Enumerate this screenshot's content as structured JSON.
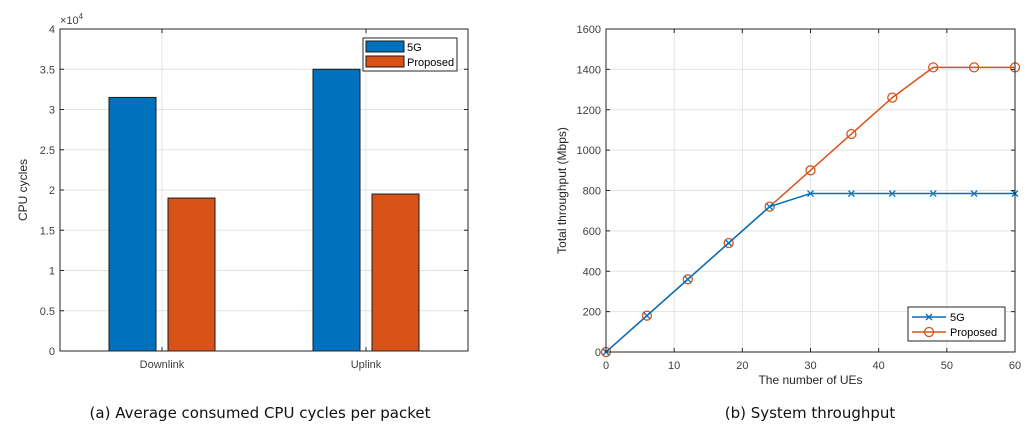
{
  "chart_data": [
    {
      "type": "bar",
      "title": "",
      "caption": "(a) Average consumed CPU cycles per packet",
      "xlabel": "",
      "ylabel": "CPU cycles",
      "exponent_label": "×10",
      "exponent_power": "4",
      "categories": [
        "Downlink",
        "Uplink"
      ],
      "series": [
        {
          "name": "5G",
          "color": "#0072BD",
          "values": [
            3.15,
            3.5
          ]
        },
        {
          "name": "Proposed",
          "color": "#D95319",
          "values": [
            1.9,
            1.95
          ]
        }
      ],
      "ylim": [
        0,
        4
      ],
      "yticks": [
        0,
        0.5,
        1,
        1.5,
        2,
        2.5,
        3,
        3.5,
        4
      ],
      "ytick_labels": [
        "0",
        "0.5",
        "1",
        "1.5",
        "2",
        "2.5",
        "3",
        "3.5",
        "4"
      ],
      "grid": true,
      "legend_position": "top-right"
    },
    {
      "type": "line",
      "title": "",
      "caption": "(b) System throughput",
      "xlabel": "The number of UEs",
      "ylabel": "Total throughput (Mbps)",
      "x": [
        0,
        6,
        12,
        18,
        24,
        30,
        36,
        42,
        48,
        54,
        60
      ],
      "series": [
        {
          "name": "5G",
          "color": "#0072BD",
          "marker": "x",
          "values": [
            0,
            180,
            360,
            540,
            720,
            785,
            785,
            785,
            785,
            785,
            785
          ]
        },
        {
          "name": "Proposed",
          "color": "#D95319",
          "marker": "o",
          "values": [
            0,
            180,
            360,
            540,
            720,
            900,
            1080,
            1260,
            1410,
            1410,
            1410
          ]
        }
      ],
      "xlim": [
        0,
        60
      ],
      "ylim": [
        0,
        1600
      ],
      "xticks": [
        0,
        10,
        20,
        30,
        40,
        50,
        60
      ],
      "xtick_labels": [
        "0",
        "10",
        "20",
        "30",
        "40",
        "50",
        "60"
      ],
      "yticks": [
        0,
        200,
        400,
        600,
        800,
        1000,
        1200,
        1400,
        1600
      ],
      "ytick_labels": [
        "0",
        "200",
        "400",
        "600",
        "800",
        "1000",
        "1200",
        "1400",
        "1600"
      ],
      "grid": true,
      "legend_position": "bottom-right"
    }
  ]
}
